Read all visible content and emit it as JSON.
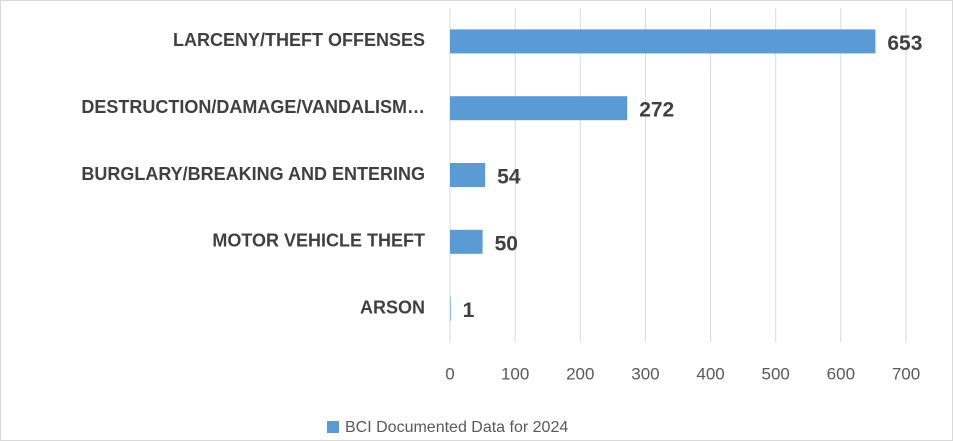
{
  "chart_data": {
    "type": "bar",
    "orientation": "horizontal",
    "categories": [
      "LARCENY/THEFT OFFENSES",
      "DESTRUCTION/DAMAGE/VANDALISM…",
      "BURGLARY/BREAKING AND ENTERING",
      "MOTOR VEHICLE THEFT",
      "ARSON"
    ],
    "series": [
      {
        "name": "BCI Documented Data for 2024",
        "color": "#5b9bd5",
        "values": [
          653,
          272,
          54,
          50,
          1
        ]
      }
    ],
    "xlim": [
      0,
      700
    ],
    "xticks": [
      0,
      100,
      200,
      300,
      400,
      500,
      600,
      700
    ],
    "grid": true,
    "legend": "bottom"
  }
}
